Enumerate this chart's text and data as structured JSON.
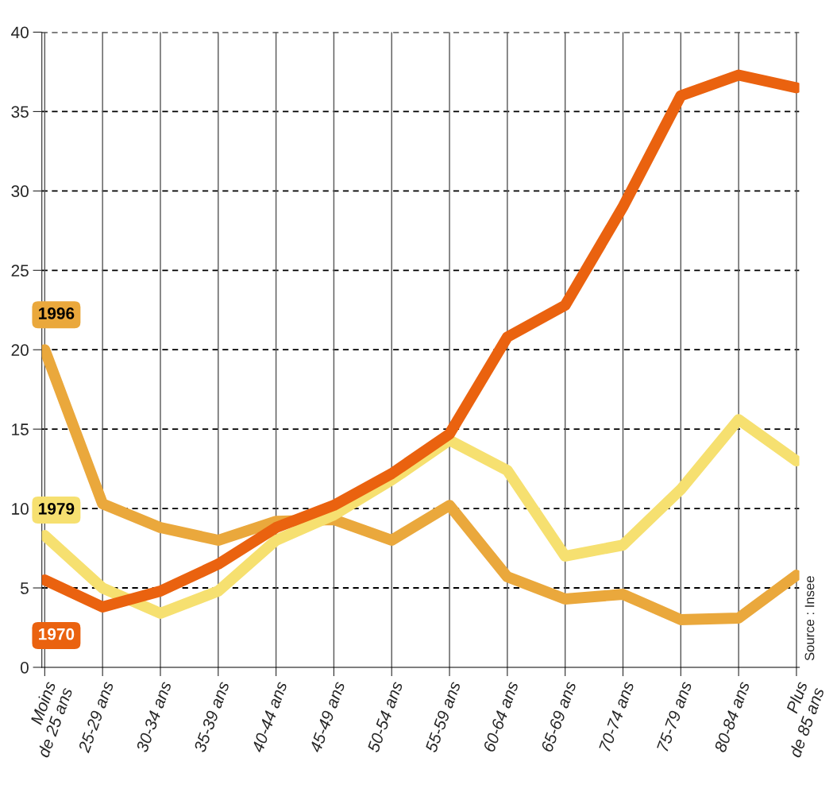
{
  "chart_data": {
    "type": "line",
    "categories": [
      "Moins\nde 25 ans",
      "25-29 ans",
      "30-34 ans",
      "35-39 ans",
      "40-44 ans",
      "45-49 ans",
      "50-54 ans",
      "55-59 ans",
      "60-64 ans",
      "65-69 ans",
      "70-74 ans",
      "75-79 ans",
      "80-84 ans",
      "Plus\nde 85 ans"
    ],
    "series": [
      {
        "name": "1996",
        "color": "#eaa83c",
        "values": [
          20,
          10.3,
          8.8,
          8,
          9.2,
          9.3,
          8,
          10.2,
          5.7,
          4.3,
          4.6,
          3,
          3.1,
          5.8
        ]
      },
      {
        "name": "1979",
        "color": "#f6e070",
        "values": [
          8.3,
          5,
          3.4,
          4.8,
          8,
          9.6,
          11.8,
          14.3,
          12.4,
          7,
          7.7,
          11.2,
          15.6,
          13
        ]
      },
      {
        "name": "1970",
        "color": "#ea620f",
        "values": [
          5.5,
          3.8,
          4.8,
          6.5,
          8.8,
          10.2,
          12.2,
          14.7,
          20.8,
          22.8,
          29,
          36,
          37.3,
          36.5
        ]
      }
    ],
    "ylim": [
      0,
      40
    ],
    "yticks": [
      0,
      5,
      10,
      15,
      20,
      25,
      30,
      35,
      40
    ],
    "grid": true,
    "legend": false,
    "line_style": "solid",
    "marker": "none",
    "annotations": [
      "Source : Insee"
    ]
  }
}
